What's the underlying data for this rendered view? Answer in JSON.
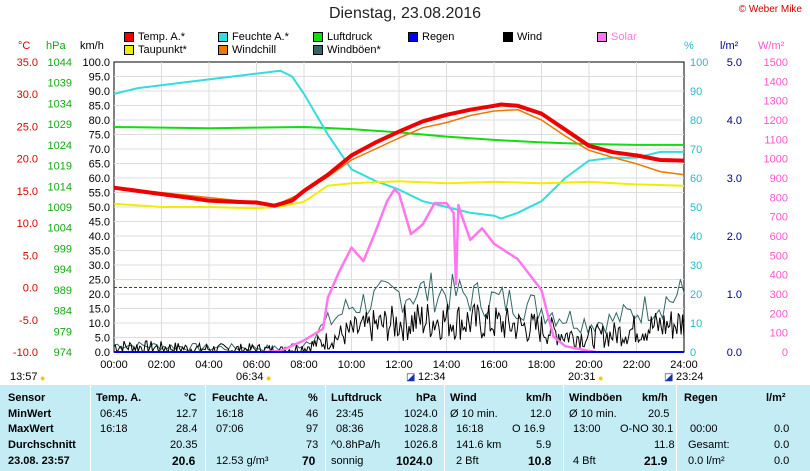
{
  "title": "Dienstag, 23.08.2016",
  "copyright": "© Weber Mike",
  "legend": [
    {
      "label": "Temp. A.*",
      "color": "#ee0000"
    },
    {
      "label": "Feuchte A.*",
      "color": "#33dddd"
    },
    {
      "label": "Luftdruck",
      "color": "#11dd11"
    },
    {
      "label": "Regen",
      "color": "#0000ee"
    },
    {
      "label": "Wind",
      "color": "#000000"
    },
    {
      "label": "Solar",
      "color": "#ff77ee"
    },
    {
      "label": "Taupunkt*",
      "color": "#eeee00"
    },
    {
      "label": "Windchill",
      "color": "#ee7700"
    },
    {
      "label": "Windböen*",
      "color": "#336666"
    }
  ],
  "axes": {
    "temp": {
      "unit": "°C",
      "color": "#dd0000",
      "ticks": [
        "35.0",
        "30.0",
        "25.0",
        "20.0",
        "15.0",
        "10.0",
        "5.0",
        "0.0",
        "-5.0",
        "-10.0"
      ]
    },
    "pressure": {
      "unit": "hPa",
      "color": "#11aa11",
      "ticks": [
        "1044",
        "1039",
        "1034",
        "1029",
        "1024",
        "1019",
        "1014",
        "1009",
        "1004",
        "999",
        "994",
        "989",
        "984",
        "979",
        "974"
      ]
    },
    "wind": {
      "unit": "km/h",
      "color": "#000000",
      "ticks": [
        "100.0",
        "95.0",
        "90.0",
        "85.0",
        "80.0",
        "75.0",
        "70.0",
        "65.0",
        "60.0",
        "55.0",
        "50.0",
        "45.0",
        "40.0",
        "35.0",
        "30.0",
        "25.0",
        "20.0",
        "15.0",
        "10.0",
        "5.0",
        "0.0"
      ]
    },
    "humidity": {
      "unit": "%",
      "color": "#22bbcc",
      "ticks": [
        "100",
        "90",
        "80",
        "70",
        "60",
        "50",
        "40",
        "30",
        "20",
        "10",
        "0"
      ]
    },
    "rain": {
      "unit": "l/m²",
      "color": "#000088",
      "ticks": [
        "5.0",
        "4.0",
        "3.0",
        "2.0",
        "1.0",
        "0.0"
      ]
    },
    "solar": {
      "unit": "W/m²",
      "color": "#ff55cc",
      "ticks": [
        "1500",
        "1400",
        "1300",
        "1200",
        "1100",
        "1000",
        "900",
        "800",
        "700",
        "600",
        "500",
        "400",
        "300",
        "200",
        "100",
        "0"
      ]
    }
  },
  "time_ticks": [
    "00:00",
    "02:00",
    "04:00",
    "06:00",
    "08:00",
    "10:00",
    "12:00",
    "14:00",
    "16:00",
    "18:00",
    "20:00",
    "22:00",
    "24:00"
  ],
  "time_markers": {
    "left_time": "13:57",
    "sunrise": "06:34",
    "noon": "12:34",
    "sunset": "20:31",
    "moon": "23:24"
  },
  "chart_data": {
    "type": "line",
    "title": "Dienstag, 23.08.2016",
    "x_unit": "hour of day",
    "xlim": [
      0,
      24
    ],
    "series": [
      {
        "name": "Temp. A.*",
        "unit": "°C",
        "color": "#ee0000",
        "x": [
          0,
          1,
          2,
          3,
          4,
          5,
          6,
          6.75,
          7.5,
          8,
          9,
          10,
          11,
          12,
          13,
          14,
          15,
          16,
          16.3,
          17,
          18,
          19,
          20,
          21,
          22,
          23,
          24
        ],
        "y": [
          15.5,
          15,
          14.5,
          14,
          13.5,
          13.3,
          13.2,
          12.7,
          13.5,
          15,
          17.5,
          20.5,
          22.5,
          24.2,
          25.8,
          26.8,
          27.6,
          28.2,
          28.4,
          28.2,
          27,
          24.5,
          22,
          21,
          20.5,
          19.8,
          19.7
        ]
      },
      {
        "name": "Taupunkt*",
        "unit": "°C",
        "color": "#eeee00",
        "x": [
          0,
          2,
          4,
          6,
          7,
          8,
          9,
          10,
          12,
          14,
          16,
          18,
          20,
          22,
          24
        ],
        "y": [
          13,
          12.5,
          12.5,
          12.3,
          12.6,
          13.3,
          15.8,
          16.2,
          16.5,
          16.2,
          16.4,
          16.2,
          16.4,
          16,
          15.8
        ]
      },
      {
        "name": "Windchill",
        "unit": "°C",
        "color": "#ee7700",
        "x": [
          0,
          6,
          6.75,
          8,
          9,
          10,
          11,
          12,
          13,
          14,
          15,
          16,
          17,
          18,
          19,
          20,
          21,
          22,
          23,
          24
        ],
        "y": [
          15.5,
          13.2,
          12.7,
          14.8,
          17.2,
          19.8,
          21.5,
          23.2,
          24.8,
          25.6,
          26.7,
          27.4,
          27.6,
          26,
          23.5,
          21.3,
          20.2,
          19.2,
          18,
          17.5
        ]
      },
      {
        "name": "Feuchte A.*",
        "unit": "%",
        "color": "#33dddd",
        "x": [
          0,
          1,
          2,
          3,
          4,
          5,
          6,
          7,
          7.5,
          8,
          9,
          10,
          11,
          12,
          13,
          14,
          15,
          16,
          16.3,
          17,
          18,
          19,
          20,
          21,
          22,
          23,
          24
        ],
        "y": [
          89,
          91,
          92,
          93,
          94,
          95,
          96,
          97,
          95,
          89,
          75,
          63,
          59,
          56,
          52,
          50,
          48,
          47,
          46,
          48,
          52,
          60,
          66,
          67,
          67,
          69,
          69
        ]
      },
      {
        "name": "Luftdruck",
        "unit": "hPa",
        "color": "#11dd11",
        "x": [
          0,
          4,
          8,
          10,
          12,
          14,
          16,
          18,
          20,
          22,
          24
        ],
        "y": [
          1028.3,
          1028.0,
          1028.3,
          1027.8,
          1027.0,
          1026.0,
          1025.2,
          1024.6,
          1024.2,
          1024.0,
          1024.0
        ]
      },
      {
        "name": "Solar",
        "unit": "W/m²",
        "color": "#ff77ee",
        "x": [
          6.3,
          7,
          8,
          8.8,
          9,
          9.5,
          10,
          10.5,
          11,
          11.5,
          11.8,
          12,
          12.5,
          13,
          13.5,
          14,
          14.3,
          14.4,
          14.5,
          14.6,
          15,
          15.5,
          16,
          17,
          18,
          18.5,
          19,
          20,
          20.3
        ],
        "y": [
          0,
          5,
          60,
          120,
          280,
          420,
          540,
          470,
          620,
          780,
          840,
          820,
          610,
          660,
          770,
          770,
          720,
          350,
          760,
          720,
          580,
          640,
          560,
          480,
          320,
          80,
          30,
          5,
          0
        ]
      },
      {
        "name": "Wind",
        "unit": "km/h",
        "color": "#000000",
        "x": [
          0,
          2,
          4,
          6,
          7,
          8,
          9,
          10,
          11,
          12,
          13,
          14,
          15,
          16,
          17,
          18,
          19,
          20,
          21,
          22,
          23,
          24
        ],
        "y": [
          2,
          1.5,
          1,
          1,
          0.5,
          1.5,
          4,
          7,
          9,
          10,
          11,
          11,
          10.5,
          10,
          9,
          8,
          6,
          5,
          6,
          8,
          9,
          10
        ]
      },
      {
        "name": "Windböen*",
        "unit": "km/h",
        "color": "#336666",
        "x": [
          0,
          2,
          4,
          6,
          7,
          8,
          9,
          10,
          11,
          12,
          13,
          14,
          15,
          16,
          17,
          18,
          19,
          20,
          21,
          22,
          23,
          24
        ],
        "y": [
          2.5,
          2,
          1.5,
          1.5,
          1,
          3,
          10,
          16,
          18,
          20,
          21,
          20.5,
          19,
          18,
          17,
          15,
          12,
          10,
          11,
          14,
          17,
          20
        ]
      },
      {
        "name": "Regen",
        "unit": "l/m²",
        "color": "#0000ee",
        "x": [
          0,
          24
        ],
        "y": [
          0,
          0
        ]
      }
    ],
    "reference_lines": [
      {
        "axis": "temp",
        "value": 0.0,
        "style": "dashed",
        "color": "#3333aa"
      }
    ]
  },
  "stats": {
    "headers": {
      "sensor": "Sensor",
      "temp": "Temp. A.",
      "temp_unit": "°C",
      "hum": "Feuchte A.",
      "hum_unit": "%",
      "pres": "Luftdruck",
      "pres_unit": "hPa",
      "wind": "Wind",
      "wind_unit": "km/h",
      "gust": "Windböen",
      "gust_unit": "km/h",
      "rain": "Regen",
      "rain_unit": "l/m²"
    },
    "rows": {
      "min": {
        "label": "MinWert",
        "temp_time": "06:45",
        "temp": "12.7",
        "hum_time": "16:18",
        "hum": "46",
        "pres_time": "23:45",
        "pres": "1024.0",
        "wind_label": "Ø 10 min.",
        "wind": "12.0",
        "gust_label": "Ø 10 min.",
        "gust": "20.5",
        "rain_time": "",
        "rain": ""
      },
      "max": {
        "label": "MaxWert",
        "temp_time": "16:18",
        "temp": "28.4",
        "hum_time": "07:06",
        "hum": "97",
        "pres_time": "08:36",
        "pres": "1028.8",
        "wind_label": "16:18",
        "wind_dir": "O 16.9",
        "gust_label": "13:00",
        "gust_dir": "O-NO 30.1",
        "rain_time": "00:00",
        "rain": "0.0"
      },
      "avg": {
        "label": "Durchschnitt",
        "temp": "20.35",
        "hum": "73",
        "pres_label": "^0.8hPa/h",
        "pres": "1026.8",
        "wind_label": "141.6 km",
        "wind": "5.9",
        "gust": "11.8",
        "rain_label": "Gesamt:",
        "rain": "0.0"
      },
      "cur": {
        "label": "23.08. 23:57",
        "temp": "20.6",
        "hum_extra": "12.53 g/m³",
        "hum": "70",
        "pres_label": "sonnig",
        "pres": "1024.0",
        "wind_label": "2 Bft",
        "wind": "10.8",
        "gust_label": "4 Bft",
        "gust": "21.9",
        "rain_label": "0.0 l/m²",
        "rain": "0.0"
      }
    }
  }
}
